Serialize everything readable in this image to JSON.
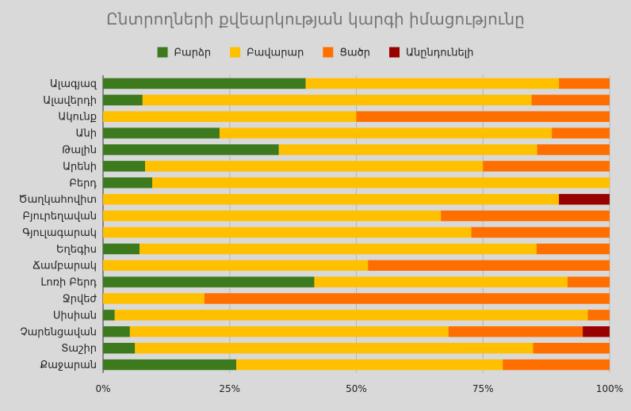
{
  "chart_data": {
    "type": "bar",
    "orientation": "horizontal",
    "stacked": "percent",
    "title": "Ընտրողների քվեարկության կարգի իմացությունը",
    "legend_position": "top",
    "categories": [
      "Ալագյազ",
      "Ալավերդի",
      "Ակունք",
      "Անի",
      "Թալին",
      "Արենի",
      "Բերդ",
      "Ծաղկահովիտ",
      "Բյուրեղավան",
      "Գյուլագարակ",
      "Եղեգիս",
      "Ճամբարակ",
      "Լոռի Բերդ",
      "Ջրվեժ",
      "Սիսիան",
      "Չարենցավան",
      "Տաշիր",
      "Քաջարան"
    ],
    "series": [
      {
        "name": "Բարձր",
        "color": "#3d7a1d",
        "values": [
          40,
          7.8,
          0,
          23,
          34.7,
          8.3,
          9.7,
          0,
          0,
          0,
          7.2,
          0,
          41.7,
          0,
          2.3,
          5.3,
          6.3,
          26.3
        ]
      },
      {
        "name": "Բավարար",
        "color": "#ffc000",
        "values": [
          50,
          76.8,
          50,
          65.6,
          51,
          66.7,
          90.3,
          90,
          66.7,
          72.7,
          78.4,
          52.3,
          50,
          20,
          93.4,
          62.9,
          78.6,
          52.6
        ]
      },
      {
        "name": "Ցածր",
        "color": "#ff6f00",
        "values": [
          10,
          15.4,
          50,
          11.4,
          14.3,
          25,
          0,
          0,
          33.3,
          27.3,
          14.4,
          47.7,
          8.3,
          80,
          4.3,
          26.5,
          15.1,
          21.1
        ]
      },
      {
        "name": "Անընդունելի",
        "color": "#990000",
        "values": [
          0,
          0,
          0,
          0,
          0,
          0,
          0,
          10,
          0,
          0,
          0,
          0,
          0,
          0,
          0,
          5.3,
          0,
          0
        ]
      }
    ],
    "x_ticks": [
      "0%",
      "25%",
      "50%",
      "75%",
      "100%"
    ],
    "xlim": [
      0,
      100
    ],
    "grid": true
  }
}
